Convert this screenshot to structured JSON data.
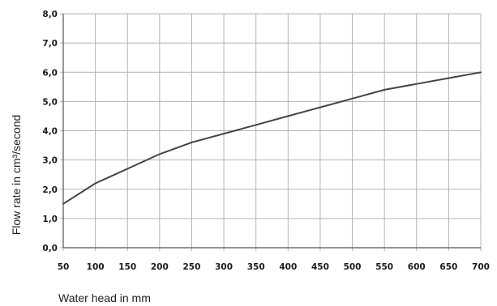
{
  "chart_data": {
    "type": "line",
    "title": "",
    "xlabel": "Water head in mm",
    "ylabel": "Flow rate in cm³/second",
    "x": [
      50,
      100,
      150,
      200,
      250,
      300,
      350,
      400,
      450,
      500,
      550,
      600,
      650,
      700
    ],
    "xticks": [
      "50",
      "100",
      "150",
      "200",
      "250",
      "300",
      "350",
      "400",
      "450",
      "500",
      "550",
      "600",
      "650",
      "700"
    ],
    "yticks": [
      "0,0",
      "1,0",
      "2,0",
      "3,0",
      "4,0",
      "5,0",
      "6,0",
      "7,0",
      "8,0"
    ],
    "xlim": [
      50,
      700
    ],
    "ylim": [
      0,
      8
    ],
    "grid": true,
    "series": [
      {
        "values": [
          1.5,
          2.2,
          2.7,
          3.2,
          3.6,
          3.9,
          4.2,
          4.5,
          4.8,
          5.1,
          5.4,
          5.6,
          5.8,
          6.0
        ]
      }
    ],
    "colors": {
      "line": "#444444",
      "grid": "#b3b3b3",
      "axis": "#555555"
    }
  }
}
